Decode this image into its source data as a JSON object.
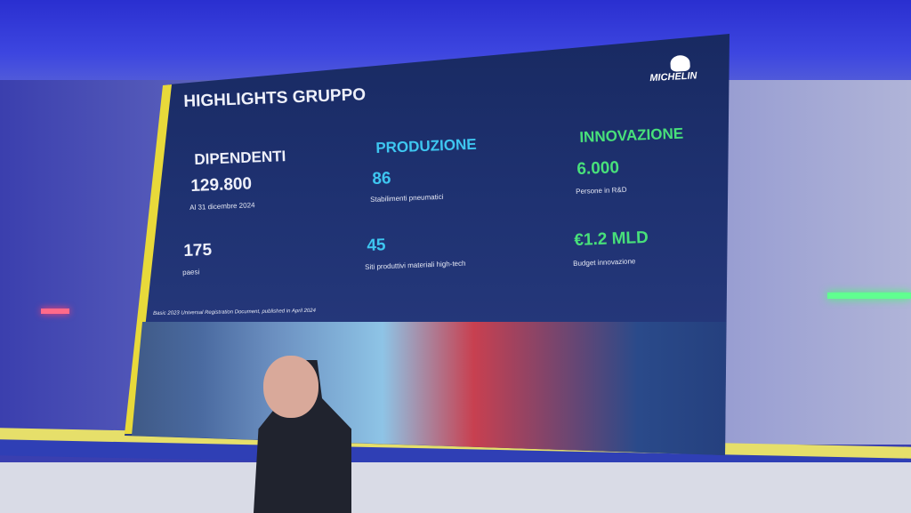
{
  "slide": {
    "title": "HIGHLIGHTS GRUPPO",
    "logo_text": "MICHELIN",
    "columns": [
      {
        "heading": "DIPENDENTI",
        "stat1": "129.800",
        "label1": "Al 31 dicembre 2024",
        "stat2": "175",
        "label2": "paesi"
      },
      {
        "heading": "PRODUZIONE",
        "stat1": "86",
        "label1": "Stabilimenti pneumatici",
        "stat2": "45",
        "label2": "Siti produttivi materiali high-tech"
      },
      {
        "heading": "INNOVAZIONE",
        "stat1": "6.000",
        "label1": "Persone in R&D",
        "stat2": "€1.2 MLD",
        "label2": "Budget innovazione"
      }
    ],
    "footnote": "Basic 2023 Universal Registration Document, published in April 2024",
    "colors": {
      "background": "#1f3272",
      "produzione": "#3ec6f0",
      "innovazione": "#48e07a",
      "accent_bar": "#e8d93a"
    }
  }
}
